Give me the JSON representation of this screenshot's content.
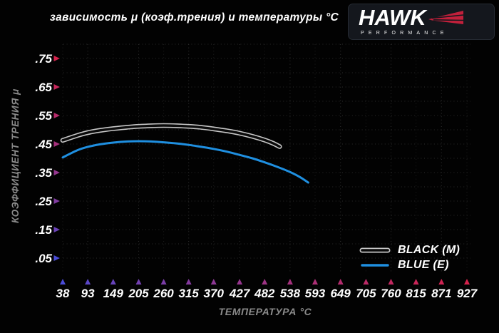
{
  "title": "зависимость μ (коэф.трения) и температуры °C",
  "logo": {
    "brand": "HAWK",
    "subtitle": "PERFORMANCE"
  },
  "colors": {
    "background": "#020202",
    "accent_hot": "#d6224c",
    "accent_cold": "#4a4cd8",
    "axis_hot_dark": "#b51f3c",
    "grid": "#2c2c2c",
    "text_primary": "#ffffff",
    "text_muted": "#8a8a8a",
    "logo_red": "#c1203b",
    "logo_bg": "#14171d",
    "blue_series": "#1f8fe0",
    "black_series_outline": "#c6c6c6",
    "black_series_core": "#0a0a0a"
  },
  "chart_data": {
    "type": "line",
    "title": "зависимость μ (коэф.трения) и температуры °C",
    "xlabel": "ТЕМПЕРАТУРА °C",
    "ylabel": "КОЭФФИЦИЕНТ ТРЕНИЯ μ",
    "x_ticks": [
      38,
      93,
      149,
      205,
      260,
      315,
      370,
      427,
      482,
      538,
      593,
      649,
      705,
      760,
      815,
      871,
      927
    ],
    "y_tick_labels": [
      ".05",
      ".15",
      ".25",
      ".35",
      ".45",
      ".55",
      ".65",
      ".75"
    ],
    "y_tick_values": [
      0.05,
      0.15,
      0.25,
      0.35,
      0.45,
      0.55,
      0.65,
      0.75
    ],
    "xlim": [
      38,
      927
    ],
    "ylim": [
      0,
      0.8
    ],
    "grid": "dotted",
    "legend_position": "lower-right-inside",
    "series": [
      {
        "name": "BLACK (M)",
        "style": "outlined",
        "outline_color": "#c6c6c6",
        "core_color": "#0a0a0a",
        "points": [
          [
            38,
            0.463
          ],
          [
            70,
            0.48
          ],
          [
            93,
            0.49
          ],
          [
            120,
            0.498
          ],
          [
            149,
            0.504
          ],
          [
            180,
            0.509
          ],
          [
            205,
            0.512
          ],
          [
            232,
            0.514
          ],
          [
            260,
            0.515
          ],
          [
            290,
            0.514
          ],
          [
            315,
            0.512
          ],
          [
            340,
            0.509
          ],
          [
            370,
            0.503
          ],
          [
            400,
            0.496
          ],
          [
            427,
            0.488
          ],
          [
            455,
            0.477
          ],
          [
            482,
            0.464
          ],
          [
            500,
            0.453
          ],
          [
            515,
            0.441
          ]
        ]
      },
      {
        "name": "BLUE (E)",
        "style": "solid",
        "color": "#1f8fe0",
        "points": [
          [
            38,
            0.403
          ],
          [
            70,
            0.428
          ],
          [
            93,
            0.44
          ],
          [
            120,
            0.449
          ],
          [
            149,
            0.455
          ],
          [
            180,
            0.459
          ],
          [
            205,
            0.46
          ],
          [
            232,
            0.459
          ],
          [
            260,
            0.456
          ],
          [
            290,
            0.452
          ],
          [
            315,
            0.447
          ],
          [
            340,
            0.441
          ],
          [
            370,
            0.433
          ],
          [
            400,
            0.423
          ],
          [
            427,
            0.412
          ],
          [
            455,
            0.4
          ],
          [
            482,
            0.386
          ],
          [
            510,
            0.37
          ],
          [
            538,
            0.352
          ],
          [
            560,
            0.334
          ],
          [
            578,
            0.315
          ]
        ]
      }
    ]
  }
}
